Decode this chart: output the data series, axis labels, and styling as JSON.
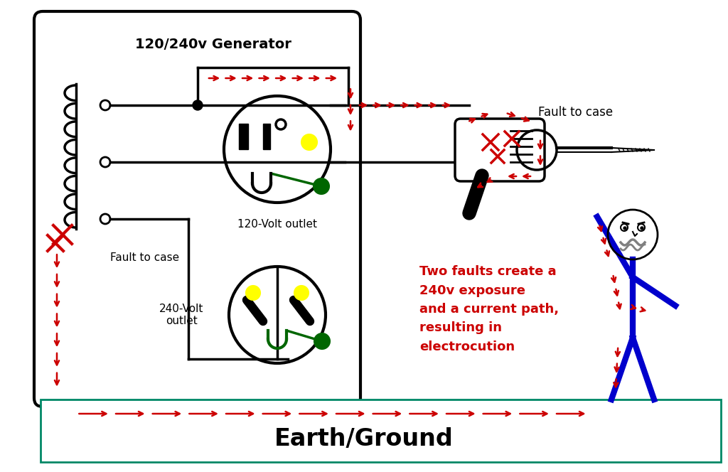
{
  "title": "120/240v Generator",
  "earth_label": "Earth/Ground",
  "fault_label_left": "Fault to case",
  "fault_label_right": "Fault to case",
  "warning_text": "Two faults create a\n240v exposure\nand a current path,\nresulting in\nelectrocution",
  "outlet_120_label": "120-Volt outlet",
  "outlet_240_label": "240-Volt\noutlet",
  "bg_color": "#ffffff",
  "red": "#cc0000",
  "green": "#008800",
  "blue": "#0000cc",
  "black": "#000000",
  "yellow": "#ffff00",
  "dark_green": "#006600",
  "teal": "#008866"
}
